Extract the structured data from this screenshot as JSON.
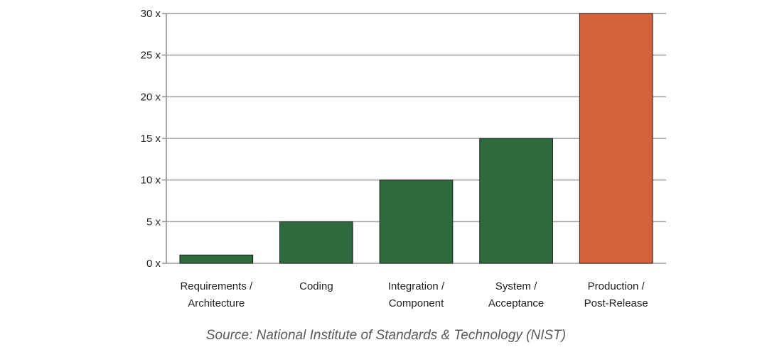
{
  "chart_data": {
    "type": "bar",
    "categories": [
      [
        "Requirements /",
        "Architecture"
      ],
      [
        "Coding"
      ],
      [
        "Integration /",
        "Component"
      ],
      [
        "System /",
        "Acceptance"
      ],
      [
        "Production /",
        "Post-Release"
      ]
    ],
    "values": [
      1,
      5,
      10,
      15,
      30
    ],
    "colors": [
      "#2d6a3e",
      "#2d6a3e",
      "#2d6a3e",
      "#2d6a3e",
      "#d4623a"
    ],
    "yticks": [
      0,
      5,
      10,
      15,
      20,
      25,
      30
    ],
    "ytick_labels": [
      "0 x",
      "5 x",
      "10 x",
      "15 x",
      "20 x",
      "25 x",
      "30 x"
    ],
    "ylim": [
      0,
      30
    ],
    "grid": true
  },
  "caption": "Source: National Institute of Standards & Technology (NIST)"
}
